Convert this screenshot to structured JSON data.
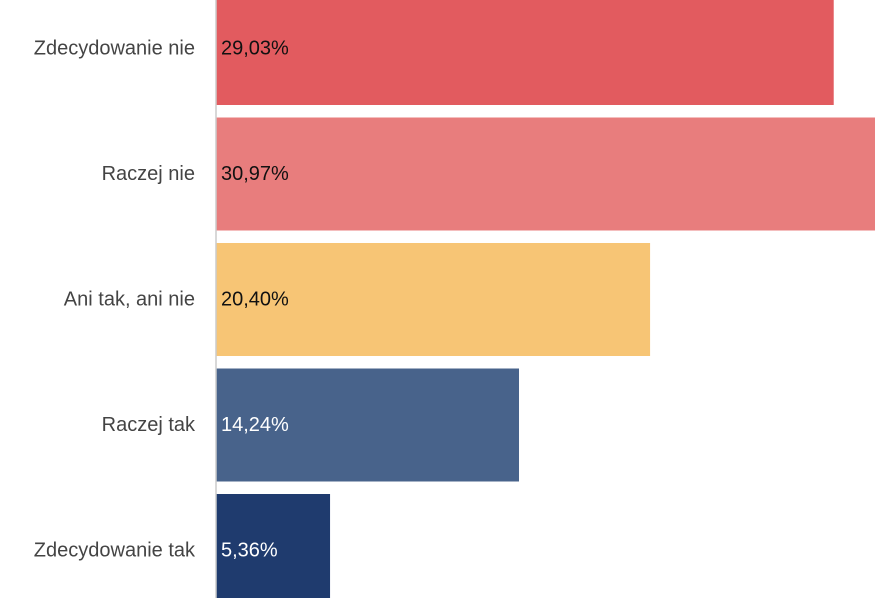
{
  "chart_data": {
    "type": "bar",
    "orientation": "horizontal",
    "categories": [
      "Zdecydowanie nie",
      "Raczej nie",
      "Ani tak, ani nie",
      "Raczej tak",
      "Zdecydowanie tak"
    ],
    "values": [
      29.03,
      30.97,
      20.4,
      14.24,
      5.36
    ],
    "value_labels": [
      "29,03%",
      "30,97%",
      "20,40%",
      "14,24%",
      "5,36%"
    ],
    "colors": [
      "#e25b5f",
      "#e87d7d",
      "#f7c575",
      "#48638b",
      "#1f3b6e"
    ],
    "label_colors": [
      "#111111",
      "#111111",
      "#111111",
      "#ffffff",
      "#ffffff"
    ],
    "xlim": [
      0,
      30.97
    ],
    "title": "",
    "xlabel": "",
    "ylabel": "",
    "grid": false,
    "legend": "none"
  }
}
